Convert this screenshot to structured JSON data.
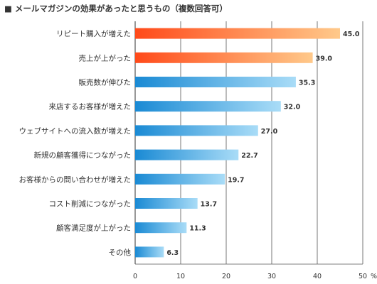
{
  "title": "■ メールマガジンの効果があったと思うもの（複数回答可）",
  "colors": {
    "highlight_start": "#ff4a1a",
    "highlight_end": "#ffc98a",
    "normal_start": "#1a8ad4",
    "normal_end": "#a9dcf7",
    "grid": "#555555"
  },
  "chart_data": {
    "type": "bar",
    "orientation": "horizontal",
    "title": "メールマガジンの効果があったと思うもの（複数回答可）",
    "categories": [
      "リピート購入が増えた",
      "売上が上がった",
      "販売数が伸びた",
      "来店するお客様が増えた",
      "ウェブサイトへの流入数が増えた",
      "新規の顧客獲得につながった",
      "お客様からの問い合わせが増えた",
      "コスト削減につながった",
      "顧客満足度が上がった",
      "その他"
    ],
    "values": [
      45.0,
      39.0,
      35.3,
      32.0,
      27.0,
      22.7,
      19.7,
      13.7,
      11.3,
      6.3
    ],
    "value_labels": [
      "45.0",
      "39.0",
      "35.3",
      "32.0",
      "27.0",
      "22.7",
      "19.7",
      "13.7",
      "11.3",
      "6.3"
    ],
    "highlighted": [
      true,
      true,
      false,
      false,
      false,
      false,
      false,
      false,
      false,
      false
    ],
    "xlim": [
      0,
      50
    ],
    "xticks": [
      "0",
      "10",
      "20",
      "30",
      "40",
      "50"
    ],
    "unit": "%",
    "grid": true
  }
}
